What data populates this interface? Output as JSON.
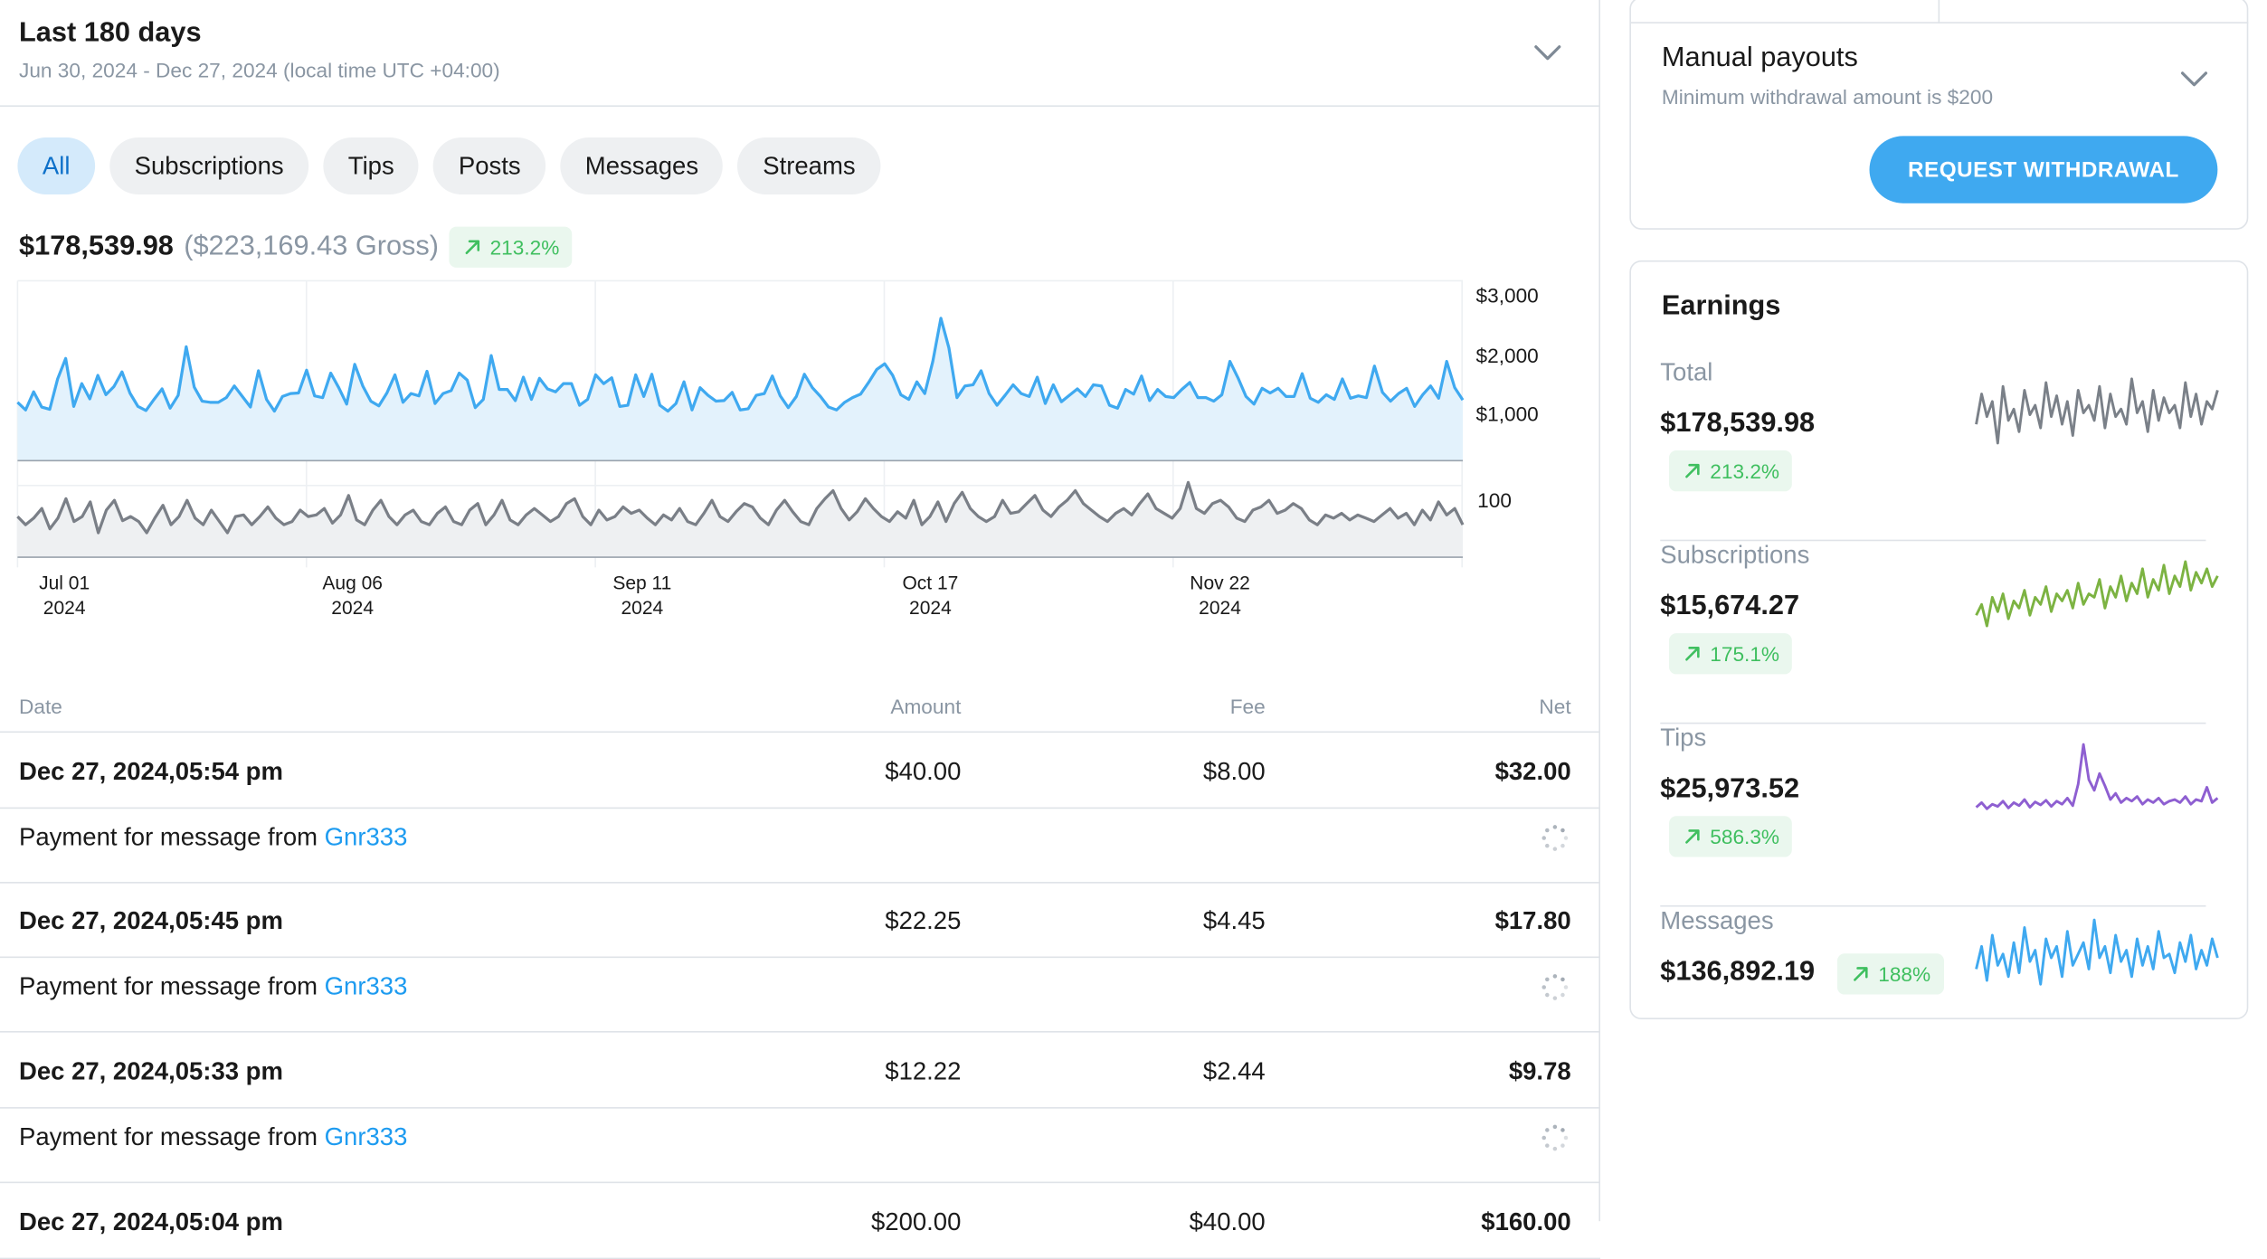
{
  "period": {
    "title": "Last 180 days",
    "range": "Jun 30, 2024 - Dec 27, 2024 (local time UTC +04:00)"
  },
  "filters": [
    "All",
    "Subscriptions",
    "Tips",
    "Posts",
    "Messages",
    "Streams"
  ],
  "active_filter": "All",
  "summary": {
    "net": "$178,539.98",
    "gross": "($223,169.43 Gross)",
    "trend": "213.2%"
  },
  "colors": {
    "accent": "#1d9bf0",
    "positive": "#3fbf5f",
    "line_amount": "#3fa9f0",
    "line_count": "#7a7f87",
    "spark_total": "#7a8088",
    "spark_subscriptions": "#7cb342",
    "spark_tips": "#8e5fd1",
    "spark_messages": "#3fa9f0"
  },
  "chart_data": {
    "type": "line",
    "x_ticks": [
      {
        "month": "Jul 01",
        "year": "2024"
      },
      {
        "month": "Aug 06",
        "year": "2024"
      },
      {
        "month": "Sep 11",
        "year": "2024"
      },
      {
        "month": "Oct 17",
        "year": "2024"
      },
      {
        "month": "Nov 22",
        "year": "2024"
      }
    ],
    "y_ticks_amount": [
      "$3,000",
      "$2,000",
      "$1,000"
    ],
    "y_ticks_count": [
      "100"
    ],
    "y_range_amount": [
      0,
      3000
    ],
    "y_range_count": [
      0,
      150
    ],
    "series": [
      {
        "values": [
          1000,
          870,
          1180,
          920,
          880,
          1400,
          1750,
          930,
          1320,
          1060,
          1460,
          1130,
          1270,
          1520,
          1160,
          930,
          860,
          1050,
          1230,
          900,
          1120,
          1950,
          1260,
          1020,
          1000,
          1000,
          1080,
          1280,
          1100,
          920,
          1540,
          1050,
          850,
          1100,
          1150,
          1160,
          1550,
          1110,
          1080,
          1500,
          1250,
          970,
          1650,
          1280,
          1020,
          940,
          1160,
          1470,
          1000,
          1150,
          1110,
          1530,
          980,
          1150,
          1200,
          1500,
          1380,
          910,
          1050,
          1800,
          1220,
          1220,
          1030,
          1430,
          1050,
          1410,
          1230,
          1180,
          1320,
          1320,
          950,
          1050,
          1470,
          1320,
          1420,
          930,
          950,
          1470,
          1100,
          1480,
          950,
          850,
          980,
          1350,
          870,
          1250,
          1120,
          1020,
          1030,
          1170,
          870,
          890,
          1120,
          1150,
          1450,
          1110,
          910,
          1100,
          1480,
          1250,
          1100,
          920,
          870,
          1000,
          1080,
          1140,
          1340,
          1560,
          1660,
          1460,
          1130,
          1050,
          1350,
          1150,
          1700,
          2440,
          1930,
          1080,
          1280,
          1300,
          1540,
          1150,
          950,
          1120,
          1300,
          1150,
          1100,
          1430,
          980,
          1300,
          1010,
          1120,
          1230,
          1100,
          1300,
          1280,
          950,
          900,
          1220,
          1140,
          1450,
          1030,
          1220,
          1100,
          1080,
          1220,
          1340,
          1080,
          1080,
          1020,
          1130,
          1700,
          1420,
          1100,
          970,
          1240,
          1160,
          1240,
          1100,
          1100,
          1490,
          1070,
          1000,
          1130,
          1050,
          1400,
          1070,
          1110,
          1080,
          1620,
          1170,
          1020,
          1150,
          1240,
          930,
          1130,
          1280,
          1070,
          1700,
          1250,
          1040
        ],
        "name": ""
      },
      {
        "values": [
          50,
          40,
          48,
          60,
          35,
          48,
          72,
          44,
          50,
          68,
          30,
          58,
          70,
          45,
          50,
          44,
          30,
          48,
          64,
          40,
          50,
          70,
          48,
          40,
          58,
          44,
          30,
          50,
          52,
          40,
          50,
          62,
          48,
          40,
          44,
          58,
          50,
          52,
          60,
          42,
          52,
          76,
          46,
          40,
          58,
          70,
          50,
          40,
          52,
          58,
          44,
          40,
          54,
          62,
          44,
          40,
          58,
          66,
          40,
          52,
          70,
          46,
          40,
          52,
          60,
          52,
          44,
          50,
          66,
          72,
          50,
          40,
          58,
          46,
          50,
          62,
          54,
          58,
          48,
          40,
          52,
          46,
          60,
          44,
          40,
          54,
          70,
          50,
          44,
          56,
          66,
          62,
          48,
          40,
          58,
          70,
          56,
          44,
          40,
          60,
          72,
          82,
          60,
          46,
          56,
          72,
          60,
          50,
          44,
          56,
          48,
          70,
          40,
          50,
          68,
          44,
          66,
          80,
          60,
          50,
          44,
          50,
          70,
          54,
          56,
          66,
          76,
          58,
          50,
          62,
          70,
          82,
          66,
          58,
          50,
          44,
          54,
          60,
          52,
          66,
          78,
          60,
          54,
          48,
          60,
          92,
          60,
          54,
          66,
          70,
          62,
          48,
          44,
          58,
          62,
          70,
          54,
          58,
          66,
          60,
          46,
          40,
          52,
          48,
          54,
          46,
          52,
          48,
          44,
          52,
          60,
          48,
          54,
          40,
          58,
          46,
          68,
          52,
          60,
          40
        ],
        "name": ""
      }
    ]
  },
  "table": {
    "headers": {
      "date": "Date",
      "amount": "Amount",
      "fee": "Fee",
      "net": "Net"
    }
  },
  "transactions": [
    {
      "date": "Dec 27, 2024,05:54 pm",
      "amount": "$40.00",
      "fee": "$8.00",
      "net": "$32.00",
      "desc": "Payment for message from ",
      "user": "Gnr333"
    },
    {
      "date": "Dec 27, 2024,05:45 pm",
      "amount": "$22.25",
      "fee": "$4.45",
      "net": "$17.80",
      "desc": "Payment for message from ",
      "user": "Gnr333"
    },
    {
      "date": "Dec 27, 2024,05:33 pm",
      "amount": "$12.22",
      "fee": "$2.44",
      "net": "$9.78",
      "desc": "Payment for message from ",
      "user": "Gnr333"
    },
    {
      "date": "Dec 27, 2024,05:04 pm",
      "amount": "$200.00",
      "fee": "$40.00",
      "net": "$160.00",
      "desc": "",
      "user": ""
    }
  ],
  "payout": {
    "title": "Manual payouts",
    "subtitle": "Minimum withdrawal amount is $200",
    "button": "REQUEST WITHDRAWAL"
  },
  "earnings": {
    "title": "Earnings",
    "items": [
      {
        "label": "Total",
        "value": "$178,539.98",
        "trend": "213.2%",
        "color": "#7a8088",
        "spark": [
          40,
          56,
          44,
          52,
          30,
          60,
          42,
          48,
          36,
          58,
          45,
          50,
          38,
          62,
          44,
          55,
          40,
          52,
          34,
          58,
          46,
          50,
          42,
          60,
          38,
          56,
          44,
          48,
          40,
          64,
          46,
          52,
          36,
          58,
          42,
          54,
          46,
          50,
          38,
          62,
          44,
          56,
          40,
          52,
          48,
          58
        ]
      },
      {
        "label": "Subscriptions",
        "value": "$15,674.27",
        "trend": "175.1%",
        "color": "#7cb342",
        "spark": [
          36,
          42,
          30,
          46,
          38,
          48,
          34,
          44,
          40,
          50,
          36,
          46,
          42,
          52,
          38,
          48,
          44,
          50,
          40,
          54,
          42,
          48,
          46,
          56,
          40,
          52,
          46,
          58,
          44,
          54,
          48,
          62,
          46,
          56,
          50,
          64,
          48,
          58,
          52,
          66,
          50,
          60,
          54,
          62,
          52,
          58
        ]
      },
      {
        "label": "Tips",
        "value": "$25,973.52",
        "trend": "586.3%",
        "color": "#8e5fd1",
        "spark": [
          8,
          14,
          6,
          12,
          9,
          16,
          7,
          14,
          10,
          18,
          8,
          15,
          11,
          17,
          9,
          16,
          12,
          20,
          10,
          38,
          90,
          44,
          30,
          52,
          36,
          18,
          26,
          14,
          20,
          16,
          22,
          12,
          18,
          14,
          20,
          12,
          16,
          18,
          14,
          22,
          12,
          18,
          16,
          34,
          14,
          20
        ]
      },
      {
        "label": "Messages",
        "value": "$136,892.19",
        "trend": "188%",
        "color": "#3fa9f0",
        "spark": [
          44,
          56,
          38,
          62,
          46,
          52,
          40,
          58,
          42,
          66,
          48,
          54,
          36,
          60,
          50,
          56,
          40,
          64,
          46,
          52,
          58,
          44,
          70,
          50,
          56,
          42,
          62,
          48,
          54,
          40,
          60,
          46,
          56,
          44,
          64,
          50,
          52,
          42,
          58,
          48,
          62,
          44,
          54,
          46,
          60,
          50
        ]
      }
    ]
  }
}
